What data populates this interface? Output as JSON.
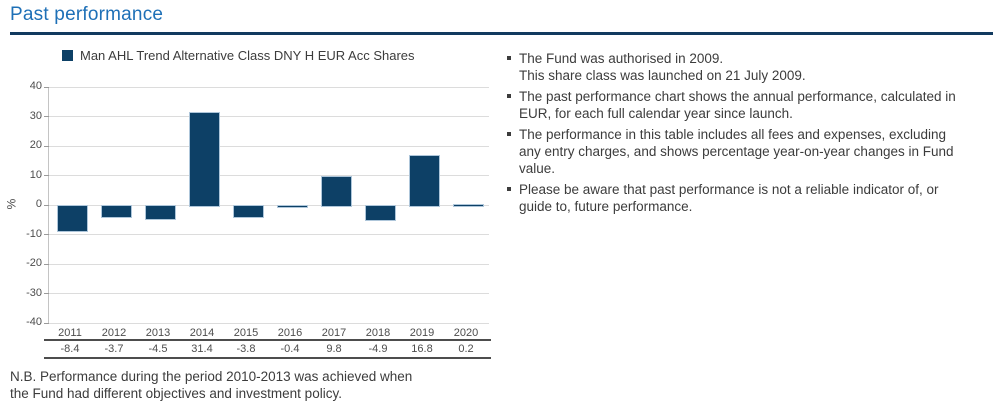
{
  "header": {
    "title": "Past performance"
  },
  "theme": {
    "accent_blue": "#1E70B7",
    "rule_navy": "#123A5F",
    "bar_navy": "#0D4066",
    "text_gray": "#3C3C3C"
  },
  "legend": {
    "label": "Man AHL Trend Alternative Class DNY H EUR Acc Shares"
  },
  "chart_data": {
    "type": "bar",
    "title": "",
    "series_name": "Man AHL Trend Alternative Class DNY H EUR Acc Shares",
    "categories": [
      "2011",
      "2012",
      "2013",
      "2014",
      "2015",
      "2016",
      "2017",
      "2018",
      "2019",
      "2020"
    ],
    "values": [
      -8.4,
      -3.7,
      -4.5,
      31.4,
      -3.8,
      -0.4,
      9.8,
      -4.9,
      16.8,
      0.2
    ],
    "xlabel": "",
    "ylabel": "%",
    "ylim": [
      -40,
      40
    ],
    "yticks": [
      40,
      30,
      20,
      10,
      0,
      -10,
      -20,
      -30,
      -40
    ],
    "grid": true,
    "legend_position": "top",
    "bar_color": "#0D4066",
    "bar_border_color": "#AEC6DA"
  },
  "notes": {
    "bullets": [
      "The Fund was authorised in 2009.\nThis share class was launched on 21 July 2009.",
      "The past performance chart shows the annual performance, calculated in\nEUR, for each full calendar year since launch.",
      "The performance in this table includes all fees and expenses, excluding\nany entry charges, and shows percentage year-on-year changes in Fund\nvalue.",
      "Please be aware that past performance is not a reliable indicator of, or\nguide to, future performance."
    ]
  },
  "footnote": {
    "text": "N.B. Performance during the period 2010-2013 was achieved when\nthe Fund had different objectives and investment policy."
  }
}
